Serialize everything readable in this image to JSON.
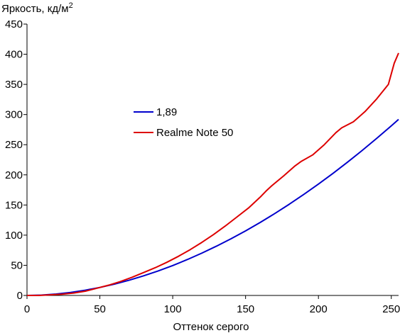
{
  "chart_data": {
    "type": "line",
    "ylabel": "Яркость, кд/м",
    "ylabel_sup": "2",
    "xlabel": "Оттенок серого",
    "xlim": [
      0,
      255
    ],
    "ylim": [
      0,
      450
    ],
    "xticks": [
      0,
      50,
      100,
      150,
      200,
      250
    ],
    "yticks": [
      0,
      50,
      100,
      150,
      200,
      250,
      300,
      350,
      400,
      450
    ],
    "grid": false,
    "legend_position": "center-left",
    "series": [
      {
        "name": "1,89",
        "color": "#0000cc",
        "x": [
          0,
          10,
          20,
          30,
          40,
          50,
          60,
          70,
          80,
          90,
          100,
          110,
          120,
          130,
          140,
          150,
          160,
          170,
          180,
          190,
          200,
          210,
          220,
          230,
          240,
          250,
          255
        ],
        "y": [
          0,
          0.6,
          2.3,
          5.0,
          8.7,
          13.3,
          18.8,
          25.2,
          32.5,
          40.6,
          49.6,
          59.5,
          70.2,
          81.7,
          94.0,
          107.1,
          121.0,
          135.8,
          151.3,
          167.6,
          184.7,
          202.5,
          221.1,
          240.4,
          260.5,
          281.3,
          291.9
        ],
        "transform_note": "display"
      },
      {
        "name": "Realme Note 50",
        "color": "#dd0000",
        "x": [
          0,
          8,
          16,
          24,
          32,
          40,
          48,
          56,
          64,
          72,
          80,
          88,
          96,
          104,
          112,
          120,
          128,
          136,
          144,
          152,
          160,
          164,
          168,
          176,
          184,
          188,
          196,
          204,
          212,
          216,
          224,
          232,
          240,
          248,
          252,
          255
        ],
        "y": [
          0,
          0,
          1,
          2,
          4,
          7,
          12,
          17,
          23,
          30,
          38,
          46,
          55,
          65,
          76,
          88,
          101,
          115,
          130,
          145,
          163,
          173,
          182,
          198,
          215,
          222,
          233,
          250,
          270,
          278,
          288,
          305,
          326,
          350,
          385,
          402
        ]
      }
    ]
  }
}
